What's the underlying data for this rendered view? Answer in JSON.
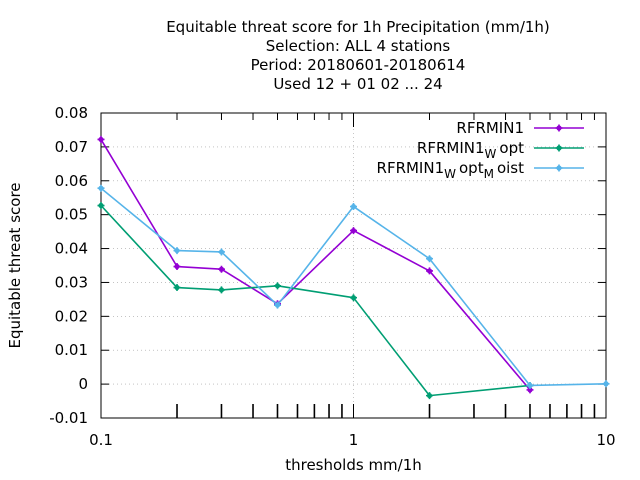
{
  "chart_data": {
    "type": "line",
    "title_lines": [
      "Equitable threat score  for 1h Precipitation (mm/1h)",
      "Selection: ALL      4 stations",
      "Period: 20180601-20180614",
      "Used  12 + 01 02 ... 24"
    ],
    "xlabel": "thresholds mm/1h",
    "ylabel": "Equitable threat score",
    "x_scale": "log",
    "xlim": [
      0.1,
      10
    ],
    "ylim": [
      -0.01,
      0.08
    ],
    "x_ticks": [
      {
        "value": 0.1,
        "label": "0.1"
      },
      {
        "value": 1,
        "label": "1"
      },
      {
        "value": 10,
        "label": "10"
      }
    ],
    "x_minor_ticks": [
      0.2,
      0.3,
      0.4,
      0.5,
      0.6,
      0.7,
      0.8,
      0.9,
      2,
      3,
      4,
      5,
      6,
      7,
      8,
      9
    ],
    "y_ticks": [
      {
        "value": -0.01,
        "label": "-0.01"
      },
      {
        "value": 0,
        "label": "0"
      },
      {
        "value": 0.01,
        "label": "0.01"
      },
      {
        "value": 0.02,
        "label": "0.02"
      },
      {
        "value": 0.03,
        "label": "0.03"
      },
      {
        "value": 0.04,
        "label": "0.04"
      },
      {
        "value": 0.05,
        "label": "0.05"
      },
      {
        "value": 0.06,
        "label": "0.06"
      },
      {
        "value": 0.07,
        "label": "0.07"
      },
      {
        "value": 0.08,
        "label": "0.08"
      }
    ],
    "grid": true,
    "legend_position": "top-right",
    "series": [
      {
        "name": "RFRMIN1",
        "name_parts": [
          {
            "text": "RFRMIN1"
          }
        ],
        "color": "#9400d3",
        "x": [
          0.1,
          0.2,
          0.3,
          0.5,
          1,
          2,
          5
        ],
        "y": [
          0.0722,
          0.0347,
          0.0339,
          0.0237,
          0.0453,
          0.0334,
          -0.0017
        ]
      },
      {
        "name": "RFRMIN1_W opt",
        "name_parts": [
          {
            "text": "RFRMIN1"
          },
          {
            "text": "W",
            "sub": true
          },
          {
            "text": "opt"
          }
        ],
        "color": "#009e73",
        "x": [
          0.1,
          0.2,
          0.3,
          0.5,
          1,
          2,
          5
        ],
        "y": [
          0.0527,
          0.0285,
          0.0278,
          0.029,
          0.0255,
          -0.0034,
          -0.0004
        ]
      },
      {
        "name": "RFRMIN1_W opt_M oist",
        "name_parts": [
          {
            "text": "RFRMIN1"
          },
          {
            "text": "W",
            "sub": true
          },
          {
            "text": "opt"
          },
          {
            "text": "M",
            "sub": true
          },
          {
            "text": "oist"
          }
        ],
        "color": "#56b4e9",
        "x": [
          0.1,
          0.2,
          0.3,
          0.5,
          1,
          2,
          5,
          10
        ],
        "y": [
          0.0578,
          0.0394,
          0.039,
          0.0233,
          0.0524,
          0.037,
          -0.0004,
          0.0001
        ]
      }
    ]
  }
}
